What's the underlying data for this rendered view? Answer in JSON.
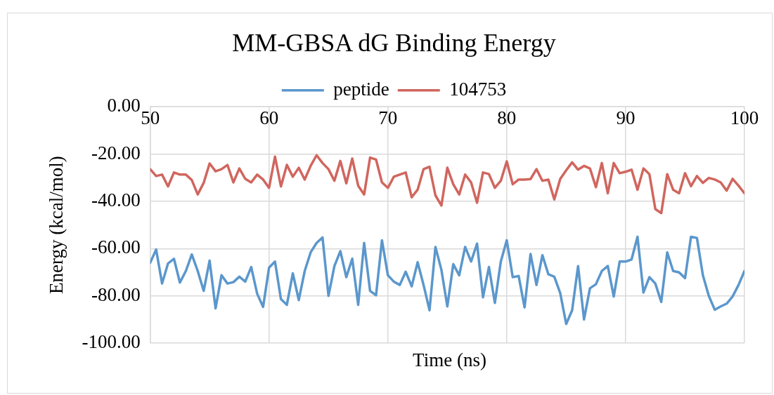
{
  "chart_data": {
    "type": "line",
    "title": "MM-GBSA dG Binding Energy",
    "xlabel": "Time (ns)",
    "ylabel": "Energy (kcal/mol)",
    "x": [
      50,
      50.5,
      51,
      51.5,
      52,
      52.5,
      53,
      53.5,
      54,
      54.5,
      55,
      55.5,
      56,
      56.5,
      57,
      57.5,
      58,
      58.5,
      59,
      59.5,
      60,
      60.5,
      61,
      61.5,
      62,
      62.5,
      63,
      63.5,
      64,
      64.5,
      65,
      65.5,
      66,
      66.5,
      67,
      67.5,
      68,
      68.5,
      69,
      69.5,
      70,
      70.5,
      71,
      71.5,
      72,
      72.5,
      73,
      73.5,
      74,
      74.5,
      75,
      75.5,
      76,
      76.5,
      77,
      77.5,
      78,
      78.5,
      79,
      79.5,
      80,
      80.5,
      81,
      81.5,
      82,
      82.5,
      83,
      83.5,
      84,
      84.5,
      85,
      85.5,
      86,
      86.5,
      87,
      87.5,
      88,
      88.5,
      89,
      89.5,
      90,
      90.5,
      91,
      91.5,
      92,
      92.5,
      93,
      93.5,
      94,
      94.5,
      95,
      95.5,
      96,
      96.5,
      97,
      97.5,
      98,
      98.5,
      99,
      99.5,
      100
    ],
    "series": [
      {
        "name": "peptide",
        "color": "#5b97cc",
        "values": [
          -66.0,
          -60.4,
          -74.8,
          -66.3,
          -64.3,
          -74.4,
          -69.5,
          -62.5,
          -69.5,
          -77.9,
          -65.1,
          -85.3,
          -71.3,
          -74.8,
          -74.2,
          -71.9,
          -74.0,
          -67.8,
          -79.1,
          -84.7,
          -68.1,
          -65.5,
          -81.4,
          -83.8,
          -70.5,
          -81.8,
          -69.5,
          -61.6,
          -57.6,
          -55.3,
          -80.0,
          -67.4,
          -61.1,
          -72.1,
          -64.3,
          -83.8,
          -57.6,
          -77.9,
          -79.8,
          -56.5,
          -71.3,
          -74.0,
          -75.4,
          -69.8,
          -76.0,
          -65.8,
          -75.4,
          -86.1,
          -59.3,
          -69.0,
          -84.5,
          -66.6,
          -71.3,
          -59.3,
          -65.5,
          -57.9,
          -80.6,
          -67.8,
          -83.0,
          -65.5,
          -56.5,
          -72.1,
          -71.6,
          -84.9,
          -62.3,
          -75.4,
          -62.8,
          -70.9,
          -71.9,
          -78.9,
          -91.9,
          -86.1,
          -67.4,
          -90.0,
          -76.8,
          -75.1,
          -69.5,
          -67.4,
          -80.3,
          -65.5,
          -65.5,
          -64.6,
          -55.0,
          -78.6,
          -72.1,
          -74.8,
          -82.6,
          -61.6,
          -69.5,
          -70.1,
          -72.5,
          -55.0,
          -55.5,
          -71.3,
          -80.0,
          -85.9,
          -84.5,
          -83.3,
          -80.3,
          -75.4,
          -69.5
        ]
      },
      {
        "name": "104753",
        "color": "#d0665e",
        "values": [
          -26.4,
          -29.3,
          -28.7,
          -33.7,
          -27.8,
          -28.7,
          -28.7,
          -31.0,
          -37.1,
          -32.2,
          -24.0,
          -27.3,
          -26.4,
          -24.6,
          -32.0,
          -26.1,
          -30.5,
          -32.0,
          -28.7,
          -30.8,
          -34.3,
          -21.1,
          -33.7,
          -24.6,
          -29.6,
          -25.8,
          -30.8,
          -25.0,
          -20.5,
          -23.8,
          -26.4,
          -31.3,
          -22.9,
          -32.4,
          -21.9,
          -33.4,
          -37.1,
          -21.5,
          -22.3,
          -32.0,
          -34.3,
          -29.6,
          -28.7,
          -27.8,
          -38.3,
          -35.1,
          -26.4,
          -25.4,
          -37.5,
          -41.8,
          -25.8,
          -32.8,
          -37.1,
          -28.7,
          -32.0,
          -40.6,
          -27.8,
          -28.5,
          -34.3,
          -31.3,
          -23.1,
          -32.8,
          -30.8,
          -30.8,
          -30.6,
          -26.4,
          -31.3,
          -30.8,
          -39.2,
          -30.5,
          -26.9,
          -23.5,
          -26.6,
          -25.0,
          -26.1,
          -34.0,
          -23.8,
          -36.6,
          -23.8,
          -28.1,
          -27.5,
          -26.6,
          -35.1,
          -26.1,
          -28.5,
          -43.3,
          -45.0,
          -28.5,
          -35.1,
          -36.6,
          -28.1,
          -33.6,
          -29.3,
          -32.2,
          -30.1,
          -30.8,
          -32.0,
          -35.5,
          -30.5,
          -33.4,
          -36.6
        ]
      }
    ],
    "xlim": [
      50,
      100
    ],
    "xticks": [
      50,
      60,
      70,
      80,
      90,
      100
    ],
    "ylim": [
      -100,
      0
    ],
    "yticks": [
      {
        "value": -100,
        "label": "-100.00"
      },
      {
        "value": -80,
        "label": "-80.00"
      },
      {
        "value": -60,
        "label": "-60.00"
      },
      {
        "value": -40,
        "label": "-40.00"
      },
      {
        "value": -20,
        "label": "-20.00"
      },
      {
        "value": 0,
        "label": "0.00"
      }
    ],
    "grid": true,
    "legend": "top",
    "marker": "none",
    "line_style": "solid"
  }
}
